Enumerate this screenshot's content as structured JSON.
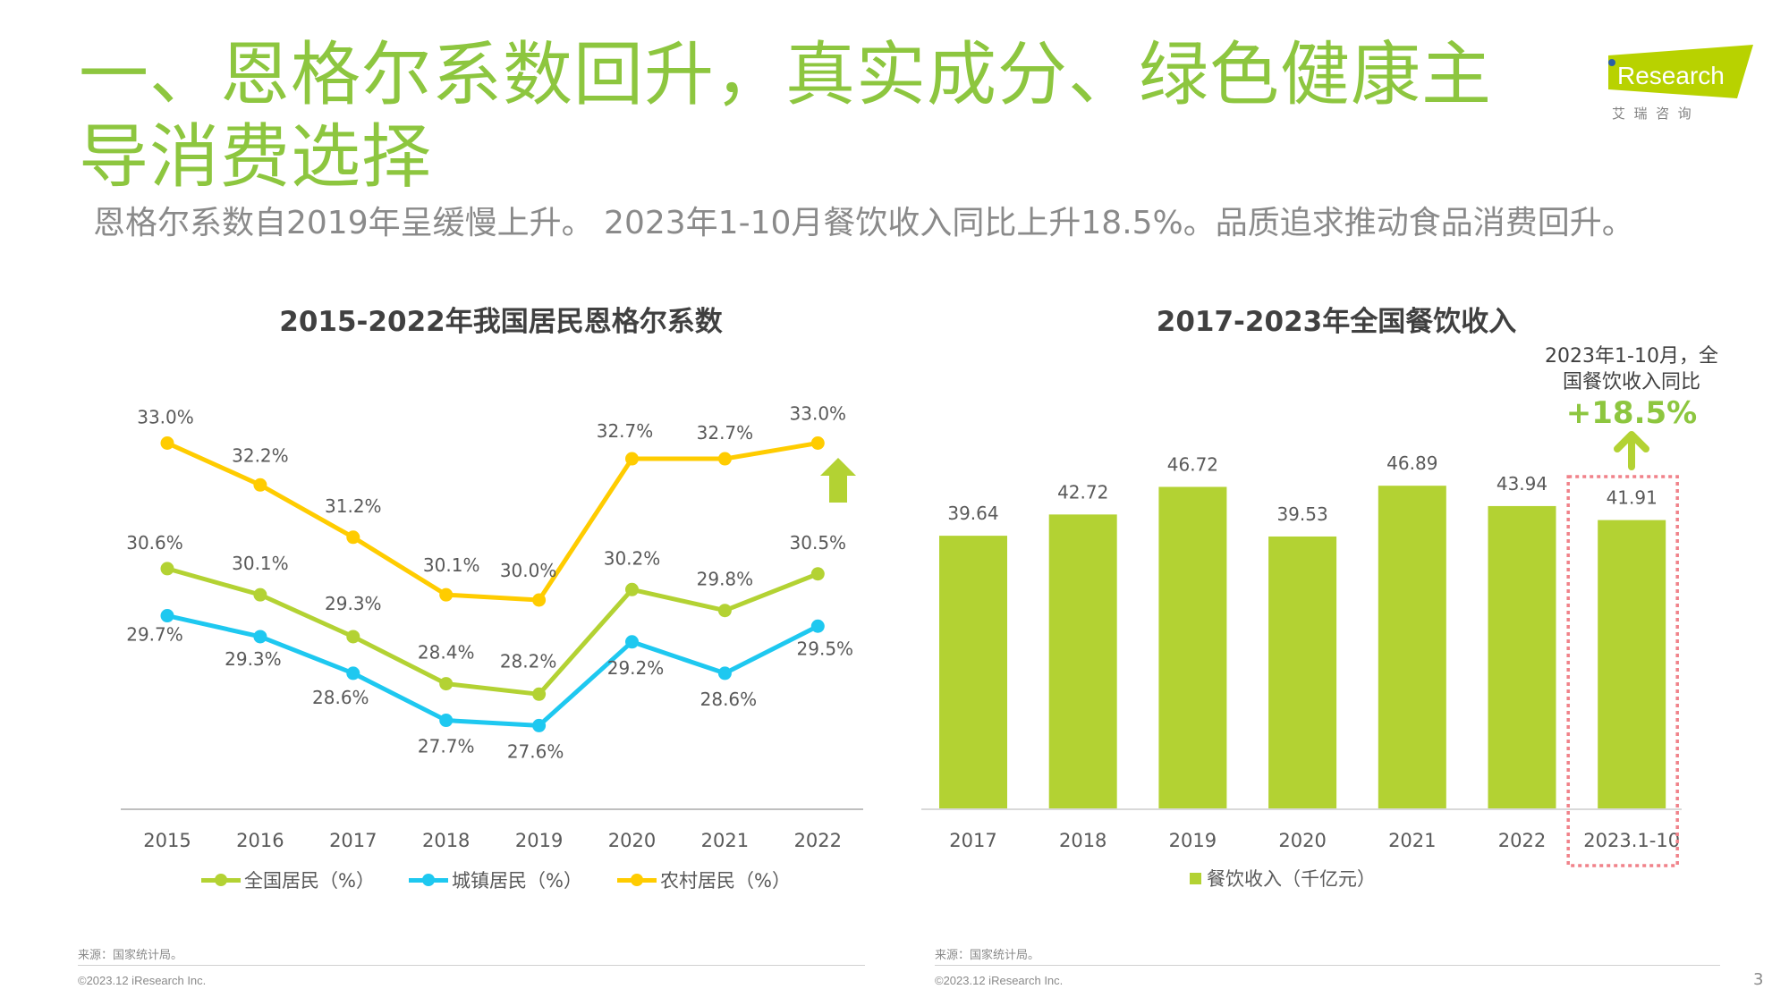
{
  "header": {
    "title": "一、恩格尔系数回升，真实成分、绿色健康主导消费选择",
    "subtitle": "恩格尔系数自2019年呈缓慢上升。 2023年1-10月餐饮收入同比上升18.5%。品质追求推动食品消费回升。",
    "title_color": "#8dc63f"
  },
  "logo": {
    "brand": "Research",
    "brand_prefix": "i",
    "tagline": "艾  瑞  咨  询",
    "brand_color": "#b8d200",
    "dot_color": "#2b5fa8"
  },
  "chart_data": [
    {
      "type": "line",
      "title": "2015-2022年我国居民恩格尔系数",
      "categories": [
        "2015",
        "2016",
        "2017",
        "2018",
        "2019",
        "2020",
        "2021",
        "2022"
      ],
      "series": [
        {
          "name": "全国居民（%）",
          "color": "#b3d233",
          "values": [
            30.6,
            30.1,
            29.3,
            28.4,
            28.2,
            30.2,
            29.8,
            30.5
          ],
          "labels": [
            "30.6%",
            "30.1%",
            "29.3%",
            "28.4%",
            "28.2%",
            "30.2%",
            "29.8%",
            "30.5%"
          ]
        },
        {
          "name": "城镇居民（%）",
          "color": "#1ec8f0",
          "values": [
            29.7,
            29.3,
            28.6,
            27.7,
            27.6,
            29.2,
            28.6,
            29.5
          ],
          "labels": [
            "29.7%",
            "29.3%",
            "28.6%",
            "27.7%",
            "27.6%",
            "29.2%",
            "28.6%",
            "29.5%"
          ]
        },
        {
          "name": "农村居民（%）",
          "color": "#ffcc00",
          "values": [
            33.0,
            32.2,
            31.2,
            30.1,
            30.0,
            32.7,
            32.7,
            33.0
          ],
          "labels": [
            "33.0%",
            "32.2%",
            "31.2%",
            "30.1%",
            "30.0%",
            "32.7%",
            "32.7%",
            "33.0%"
          ]
        }
      ],
      "xlabel": "",
      "ylabel": "",
      "ylim": [
        26,
        34
      ],
      "grid": false,
      "legend": "bottom",
      "annotation": {
        "type": "up-arrow",
        "color": "#b3d233"
      }
    },
    {
      "type": "bar",
      "title": "2017-2023年全国餐饮收入",
      "categories": [
        "2017",
        "2018",
        "2019",
        "2020",
        "2021",
        "2022",
        "2023.1-10"
      ],
      "series": [
        {
          "name": "餐饮收入（千亿元）",
          "color": "#b3d233",
          "values": [
            39.64,
            42.72,
            46.72,
            39.53,
            46.89,
            43.94,
            41.91
          ],
          "labels": [
            "39.64",
            "42.72",
            "46.72",
            "39.53",
            "46.89",
            "43.94",
            "41.91"
          ]
        }
      ],
      "xlabel": "",
      "ylabel": "",
      "ylim": [
        0,
        60
      ],
      "grid": false,
      "legend": "bottom",
      "highlight": {
        "category": "2023.1-10",
        "style": "dashed-box",
        "color": "#f0828a"
      },
      "annotation": {
        "text_line1": "2023年1-10月，全",
        "text_line2": "国餐饮收入同比",
        "value": "+18.5%",
        "value_color": "#8dc63f",
        "arrow": "up"
      }
    }
  ],
  "footer": {
    "left": {
      "source": "来源：国家统计局。",
      "copyright": "©2023.12 iResearch Inc."
    },
    "right": {
      "source": "来源：国家统计局。",
      "copyright": "©2023.12 iResearch Inc."
    },
    "page_number": "3"
  }
}
